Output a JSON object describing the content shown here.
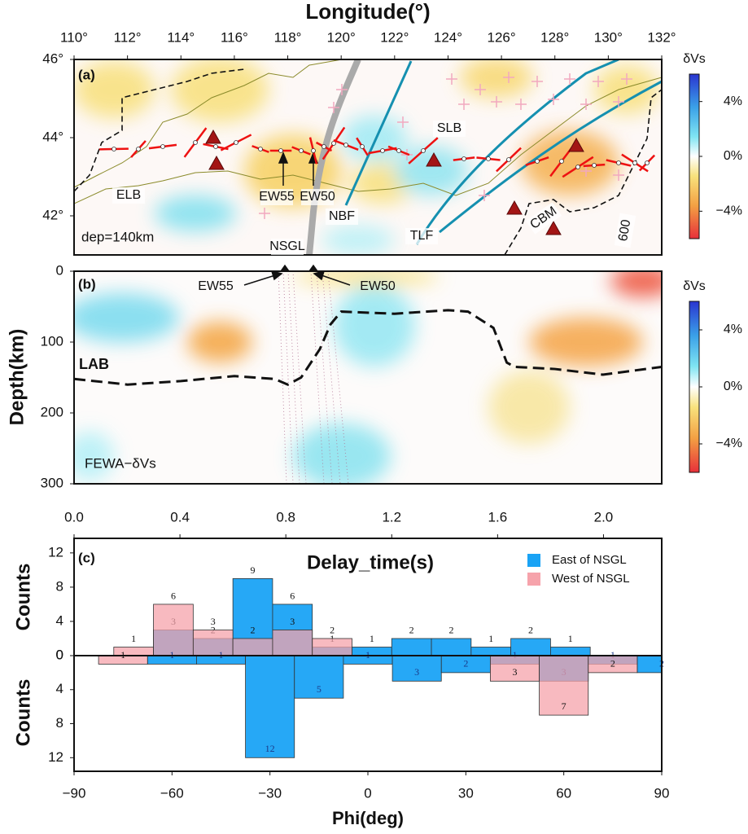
{
  "chart_data": [
    {
      "type": "map",
      "title": "Longitude(°)",
      "panel": "(a)",
      "annotation": "dep=140km",
      "xlim": [
        110,
        132
      ],
      "xticks": [
        {
          "value": 110,
          "label": "110°"
        },
        {
          "value": 112,
          "label": "112°"
        },
        {
          "value": 114,
          "label": "114°"
        },
        {
          "value": 116,
          "label": "116°"
        },
        {
          "value": 118,
          "label": "118°"
        },
        {
          "value": 120,
          "label": "120°"
        },
        {
          "value": 122,
          "label": "122°"
        },
        {
          "value": 124,
          "label": "124°"
        },
        {
          "value": 126,
          "label": "126°"
        },
        {
          "value": 128,
          "label": "128°"
        },
        {
          "value": 130,
          "label": "130°"
        },
        {
          "value": 132,
          "label": "132°"
        }
      ],
      "ylim": [
        41,
        46
      ],
      "yticks": [
        {
          "value": 42,
          "label": "42°"
        },
        {
          "value": 44,
          "label": "44°"
        },
        {
          "value": 46,
          "label": "46°"
        }
      ],
      "places": [
        "ELB",
        "EW55",
        "EW50",
        "NBF",
        "NSGL",
        "TLF",
        "SLB",
        "CBM",
        "600"
      ],
      "colorbar": {
        "label": "δVs",
        "lim": [
          -6,
          6
        ],
        "ticks": [
          {
            "value": 4,
            "label": "4%"
          },
          {
            "value": 0,
            "label": "0%"
          },
          {
            "value": -4,
            "label": "−4%"
          }
        ]
      }
    },
    {
      "type": "section",
      "panel": "(b)",
      "ylabel": "Depth(km)",
      "annotation": "FEWA−δVs",
      "xlim": [
        110,
        132
      ],
      "ylim": [
        0,
        300
      ],
      "yticks": [
        0,
        100,
        200,
        300
      ],
      "profiles": [
        "EW55",
        "EW50"
      ],
      "series": [
        {
          "name": "LAB",
          "color": "#111111",
          "x": [
            110,
            112,
            114,
            116,
            117.5,
            118,
            118.5,
            119.2,
            119.6,
            120,
            122,
            124,
            124.75,
            125.7,
            126.2,
            126.5,
            128,
            129.8,
            131,
            132
          ],
          "values": [
            152,
            160,
            155,
            148,
            152,
            160,
            150,
            110,
            75,
            57,
            60,
            55,
            57,
            80,
            129,
            135,
            138,
            146,
            140,
            135
          ]
        }
      ],
      "colorbar": {
        "label": "δVs",
        "lim": [
          -6,
          6
        ],
        "ticks": [
          {
            "value": 4,
            "label": "4%"
          },
          {
            "value": 0,
            "label": "0%"
          },
          {
            "value": -4,
            "label": "−4%"
          }
        ]
      }
    },
    {
      "type": "histogram",
      "panel": "(c)",
      "xlabel": "Phi(deg)",
      "x2label": "Delay_time(s)",
      "legend": "top-right",
      "xlim": [
        -90,
        90
      ],
      "xticks": [
        {
          "value": -90,
          "label": "−90"
        },
        {
          "value": -60,
          "label": "−60"
        },
        {
          "value": -30,
          "label": "−30"
        },
        0,
        30,
        60,
        90
      ],
      "x2lim": [
        0,
        2.22
      ],
      "x2ticks": [
        {
          "value": 0,
          "label": "0.0"
        },
        0.4,
        0.8,
        1.2,
        1.6,
        {
          "value": 2,
          "label": "2.0"
        }
      ],
      "upper": {
        "ylabel": "Counts",
        "ylim": [
          0,
          13.7
        ],
        "yticks": [
          0,
          4,
          8,
          12
        ],
        "bins": [
          0,
          0.15,
          0.3,
          0.45,
          0.6,
          0.75,
          0.9,
          1.05,
          1.2,
          1.35,
          1.5,
          1.65,
          1.8,
          1.95
        ],
        "series": [
          {
            "name": "East of NSGL",
            "color": "#1aa3f5",
            "values": [
              0,
              0,
              3,
              2,
              9,
              6,
              1,
              1,
              2,
              2,
              1,
              2,
              1
            ]
          },
          {
            "name": "West of NSGL",
            "color": "#f6a3ab",
            "values": [
              0,
              1,
              6,
              3,
              2,
              3,
              2,
              0,
              0,
              0,
              0,
              0,
              0
            ]
          }
        ]
      },
      "lower": {
        "ylabel": "Counts",
        "ylim": [
          0,
          13.6
        ],
        "yticks": [
          0,
          4,
          8,
          12
        ],
        "bins": [
          -82.5,
          -67.5,
          -52.5,
          -37.5,
          -22.5,
          -7.5,
          7.5,
          22.5,
          37.5,
          52.5,
          67.5,
          82.5,
          97.5
        ],
        "series": [
          {
            "values": [
              0,
              1,
              1,
              12,
              5,
              1,
              3,
              2,
              1,
              3,
              1,
              2
            ]
          },
          {
            "values": [
              1,
              0,
              0,
              0,
              0,
              0,
              0,
              0,
              3,
              7,
              2,
              0
            ]
          }
        ]
      }
    }
  ]
}
